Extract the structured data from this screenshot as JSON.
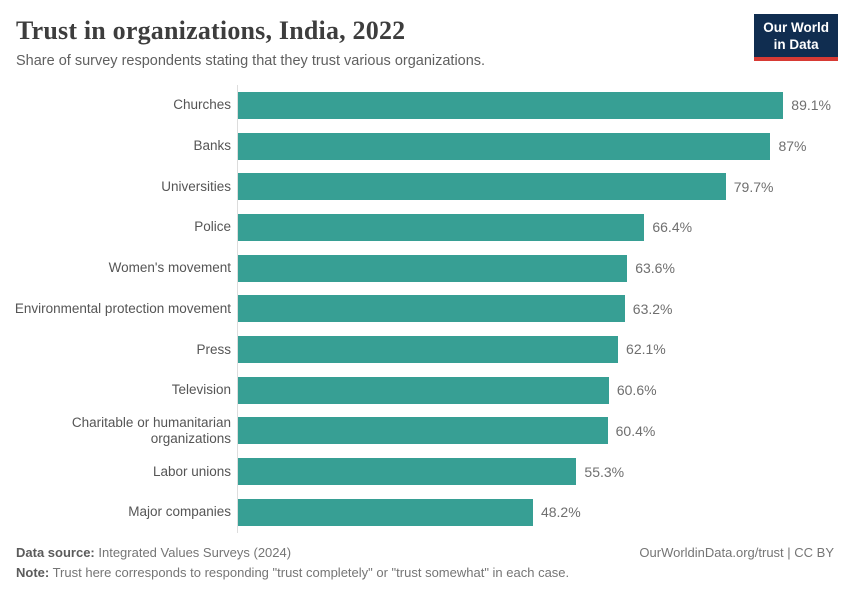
{
  "header": {
    "title": "Trust in organizations, India, 2022",
    "subtitle": "Share of survey respondents stating that they trust various organizations.",
    "logo": {
      "line1": "Our World",
      "line2": "in Data"
    }
  },
  "chart_data": {
    "type": "bar",
    "orientation": "horizontal",
    "title": "Trust in organizations, India, 2022",
    "categories": [
      "Churches",
      "Banks",
      "Universities",
      "Police",
      "Women's movement",
      "Environmental protection movement",
      "Press",
      "Television",
      "Charitable or humanitarian organizations",
      "Labor unions",
      "Major companies"
    ],
    "values": [
      89.1,
      87,
      79.7,
      66.4,
      63.6,
      63.2,
      62.1,
      60.6,
      60.4,
      55.3,
      48.2
    ],
    "value_labels": [
      "89.1%",
      "87%",
      "79.7%",
      "66.4%",
      "63.6%",
      "63.2%",
      "62.1%",
      "60.6%",
      "60.4%",
      "55.3%",
      "48.2%"
    ],
    "unit": "%",
    "xlim": [
      0,
      100
    ],
    "grid": false,
    "legend": "none"
  },
  "footer": {
    "source_label": "Data source:",
    "source_text": " Integrated Values Surveys (2024)",
    "note_label": "Note:",
    "note_text": " Trust here corresponds to responding \"trust completely\" or \"trust somewhat\" in each case.",
    "link_text": "OurWorldinData.org/trust | CC BY"
  },
  "colors": {
    "bar": "#379f94",
    "axis": "#dddddd",
    "title": "#3d3d3d",
    "logo_bg": "#102d50",
    "logo_red": "#d73a34"
  }
}
